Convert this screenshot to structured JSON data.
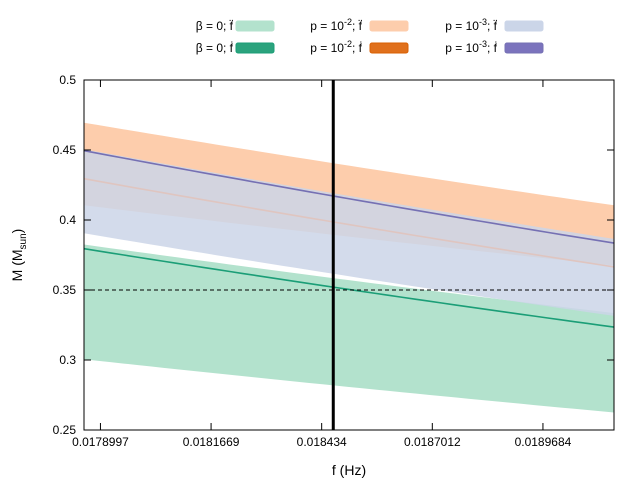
{
  "chart_data": {
    "type": "area",
    "title": "",
    "xlabel": "f (Hz)",
    "ylabel": "M (M",
    "ylabel_sub": "sun",
    "ylabel_close": ")",
    "xlim": [
      0.01786,
      0.01914
    ],
    "ylim": [
      0.25,
      0.5
    ],
    "xticks": [
      {
        "value": 0.0178997,
        "label": "0.0178997"
      },
      {
        "value": 0.0181669,
        "label": "0.0181669"
      },
      {
        "value": 0.018434,
        "label": "0.018434"
      },
      {
        "value": 0.0187012,
        "label": "0.0187012"
      },
      {
        "value": 0.0189684,
        "label": "0.0189684"
      }
    ],
    "yticks": [
      {
        "value": 0.25,
        "label": "0.25"
      },
      {
        "value": 0.3,
        "label": "0.3"
      },
      {
        "value": 0.35,
        "label": "0.35"
      },
      {
        "value": 0.4,
        "label": "0.4"
      },
      {
        "value": 0.45,
        "label": "0.45"
      },
      {
        "value": 0.5,
        "label": "0.5"
      }
    ],
    "grid": false,
    "reference_lines": {
      "vertical_x": 0.018462,
      "horizontal_y": 0.35
    },
    "x": [
      0.01786,
      0.01914
    ],
    "series": [
      {
        "name": "β = 0; f̈ band",
        "kind": "band",
        "color": "#b3e2cd",
        "lower": [
          0.3005,
          0.2625
        ],
        "upper": [
          0.3825,
          0.3335
        ]
      },
      {
        "name": "β = 0; ḟ line",
        "kind": "line",
        "color": "#1b9e77",
        "values": [
          0.3795,
          0.3235
        ]
      },
      {
        "name": "p = 10⁻²; f̈ band",
        "kind": "band",
        "color": "#fdcdac",
        "lower": [
          0.4105,
          0.3675
        ],
        "upper": [
          0.4695,
          0.4105
        ]
      },
      {
        "name": "p = 10⁻²; ḟ line",
        "kind": "line",
        "color": "#dfc5c0",
        "values": [
          0.4295,
          0.3665
        ]
      },
      {
        "name": "p = 10⁻³; f̈ band",
        "kind": "band",
        "color": "#cbd5e8",
        "lower": [
          0.3905,
          0.3315
        ],
        "upper": [
          0.4505,
          0.3865
        ]
      },
      {
        "name": "p = 10⁻³; ḟ line",
        "kind": "line",
        "color": "#7570b3",
        "values": [
          0.4495,
          0.3835
        ]
      }
    ],
    "legend": {
      "placement": "top",
      "entries": [
        {
          "prefix": "β = 0; ",
          "sup": "",
          "suffix": "",
          "deriv": "f̈",
          "color": "#b3e2cd",
          "stroke": "#b3e2cd"
        },
        {
          "prefix": "p = 10",
          "sup": "-2",
          "suffix": "; ",
          "deriv": "f̈",
          "color": "#fdcdac",
          "stroke": "#fdcdac"
        },
        {
          "prefix": "p = 10",
          "sup": "-3",
          "suffix": "; ",
          "deriv": "f̈",
          "color": "#cbd5e8",
          "stroke": "#cbd5e8"
        },
        {
          "prefix": "β = 0; ",
          "sup": "",
          "suffix": "",
          "deriv": "ḟ",
          "color": "#2ba37d",
          "stroke": "#1b9e77"
        },
        {
          "prefix": "p = 10",
          "sup": "-2",
          "suffix": "; ",
          "deriv": "ḟ",
          "color": "#e0701c",
          "stroke": "#d95f02"
        },
        {
          "prefix": "p = 10",
          "sup": "-3",
          "suffix": "; ",
          "deriv": "ḟ",
          "color": "#7b73bd",
          "stroke": "#7570b3"
        }
      ]
    }
  }
}
